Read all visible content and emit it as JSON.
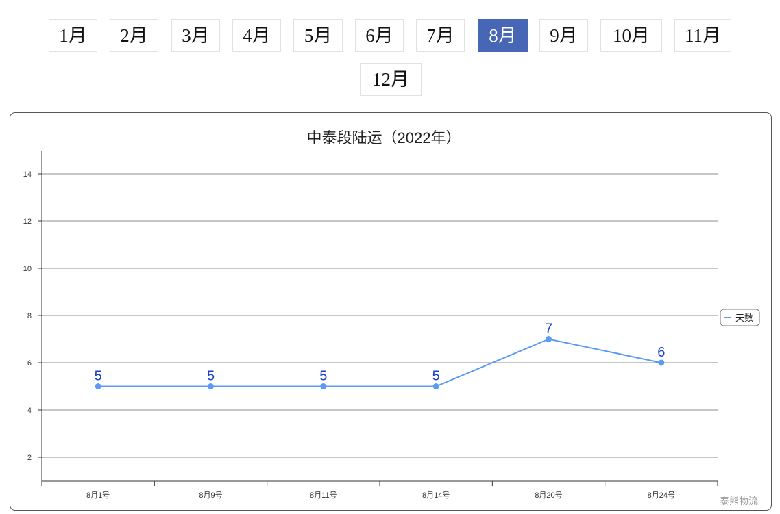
{
  "month_tabs": [
    {
      "label": "1月",
      "active": false
    },
    {
      "label": "2月",
      "active": false
    },
    {
      "label": "3月",
      "active": false
    },
    {
      "label": "4月",
      "active": false
    },
    {
      "label": "5月",
      "active": false
    },
    {
      "label": "6月",
      "active": false
    },
    {
      "label": "7月",
      "active": false
    },
    {
      "label": "8月",
      "active": true
    },
    {
      "label": "9月",
      "active": false
    },
    {
      "label": "10月",
      "active": false
    },
    {
      "label": "11月",
      "active": false
    },
    {
      "label": "12月",
      "active": false
    }
  ],
  "colors": {
    "active_tab": "#4766b6",
    "series_line": "#5b9bf5",
    "data_label": "#1a3fd6",
    "gridline": "#8c8c8c"
  },
  "chart_data": {
    "type": "line",
    "title": "中泰段陆运（2022年）",
    "categories": [
      "8月1号",
      "8月9号",
      "8月11号",
      "8月14号",
      "8月20号",
      "8月24号"
    ],
    "series": [
      {
        "name": "天数",
        "values": [
          5,
          5,
          5,
          5,
          7,
          6
        ]
      }
    ],
    "data_labels": true,
    "ylim": [
      1,
      15
    ],
    "yticks": [
      2,
      4,
      6,
      8,
      10,
      12,
      14
    ],
    "grid": true,
    "legend_position": "right",
    "credit": "泰熊物流"
  }
}
